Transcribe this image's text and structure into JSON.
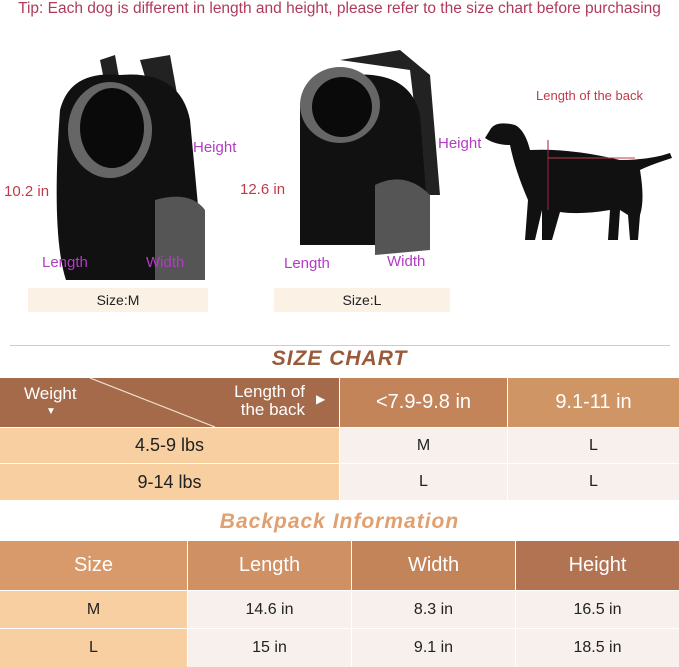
{
  "tip": "Tip: Each dog is different in length and height, please refer to the size chart before purchasing",
  "products": [
    {
      "size_label": "Size:M",
      "side_height": "10.2 in",
      "height_label": "Height",
      "length_label": "Length",
      "width_label": "Width"
    },
    {
      "size_label": "Size:L",
      "side_height": "12.6 in",
      "height_label": "Height",
      "length_label": "Length",
      "width_label": "Width"
    }
  ],
  "dog": {
    "back_label": "Length of the back"
  },
  "size_chart": {
    "title": "SIZE CHART",
    "row_header": "Weight",
    "col_header": "Length of the back",
    "columns": [
      "<7.9-9.8 in",
      "9.1-11 in"
    ],
    "rows": [
      {
        "weight": "4.5-9 lbs",
        "values": [
          "M",
          "L"
        ]
      },
      {
        "weight": "9-14 lbs",
        "values": [
          "L",
          "L"
        ]
      }
    ]
  },
  "backpack_info": {
    "title": "Backpack Information",
    "headers": [
      "Size",
      "Length",
      "Width",
      "Height"
    ],
    "rows": [
      [
        "M",
        "14.6 in",
        "8.3 in",
        "16.5 in"
      ],
      [
        "L",
        "15 in",
        "9.1 in",
        "18.5 in"
      ]
    ]
  },
  "colors": {
    "accent": "#a0674a",
    "light": "#f8cfa1",
    "label": "#b23cc4"
  }
}
